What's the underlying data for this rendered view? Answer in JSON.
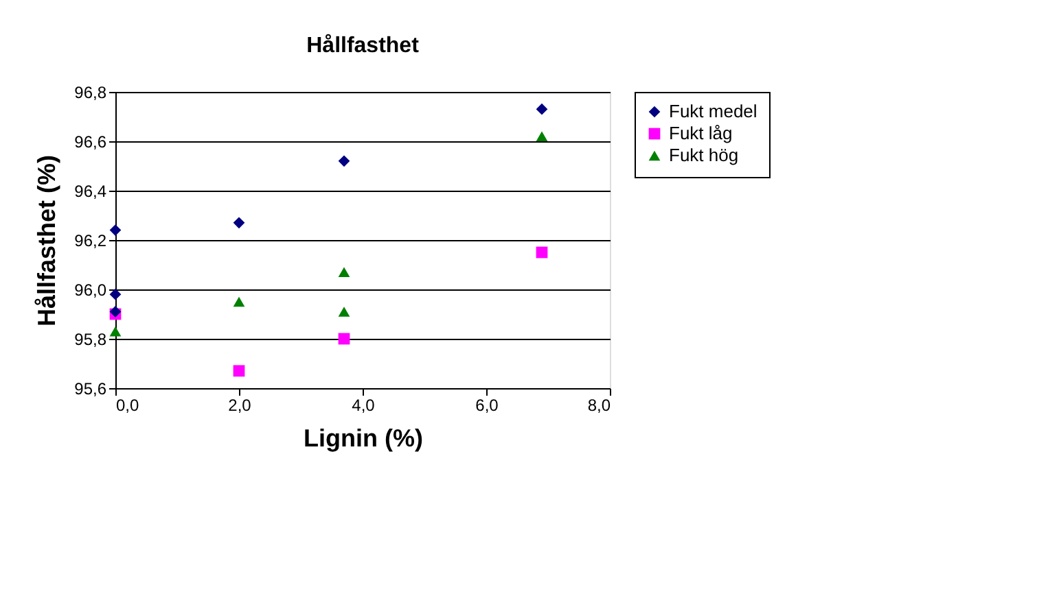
{
  "chart_data": {
    "type": "scatter",
    "title": "Hållfasthet",
    "xlabel": "Lignin (%)",
    "ylabel": "Hållfasthet (%)",
    "xlim": [
      0,
      8
    ],
    "xticks": [
      {
        "value": 0,
        "label": "0,0"
      },
      {
        "value": 2,
        "label": "2,0"
      },
      {
        "value": 4,
        "label": "4,0"
      },
      {
        "value": 6,
        "label": "6,0"
      },
      {
        "value": 8,
        "label": "8,0"
      }
    ],
    "ylim": [
      95.6,
      96.8
    ],
    "yticks": [
      {
        "value": 95.6,
        "label": "95,6"
      },
      {
        "value": 95.8,
        "label": "95,8"
      },
      {
        "value": 96.0,
        "label": "96,0"
      },
      {
        "value": 96.2,
        "label": "96,2"
      },
      {
        "value": 96.4,
        "label": "96,4"
      },
      {
        "value": 96.6,
        "label": "96,6"
      },
      {
        "value": 96.8,
        "label": "96,8"
      }
    ],
    "grid": "y",
    "legend": "right",
    "series": [
      {
        "name": "Fukt medel",
        "color": "#000080",
        "marker": "diamond",
        "x": [
          0,
          0,
          0,
          2,
          3.7,
          6.9
        ],
        "values": [
          96.24,
          95.98,
          95.91,
          96.27,
          96.52,
          96.73
        ]
      },
      {
        "name": "Fukt låg",
        "color": "#ff00ff",
        "marker": "square",
        "x": [
          0,
          2,
          3.7,
          6.9
        ],
        "values": [
          95.9,
          95.67,
          95.8,
          96.15
        ]
      },
      {
        "name": "Fukt hög",
        "color": "#008000",
        "marker": "triangle",
        "x": [
          0,
          2,
          3.7,
          3.7,
          6.9
        ],
        "values": [
          95.83,
          95.95,
          96.07,
          95.91,
          96.62
        ]
      }
    ]
  }
}
